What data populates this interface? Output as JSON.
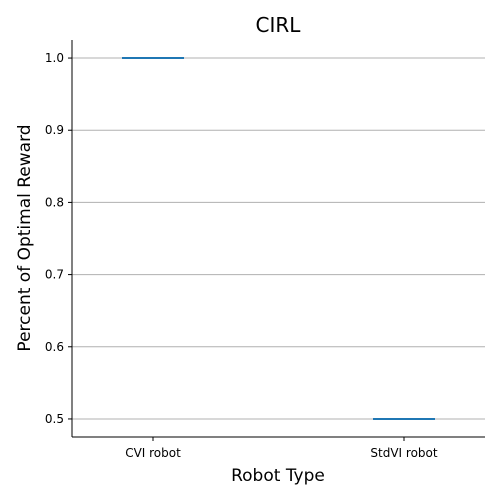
{
  "chart_data": {
    "type": "box",
    "title": "CIRL",
    "xlabel": "Robot Type",
    "ylabel": "Percent of Optimal Reward",
    "categories": [
      "CVI robot",
      "StdVI robot"
    ],
    "values": [
      1.0,
      0.5
    ],
    "ylim": [
      0.475,
      1.025
    ],
    "yticks": [
      "0.5",
      "0.6",
      "0.7",
      "0.8",
      "0.9",
      "1.0"
    ],
    "grid": "horizontal",
    "legend": "none",
    "line_color": "#1f77b4",
    "grid_color": "#b0b0b0"
  }
}
